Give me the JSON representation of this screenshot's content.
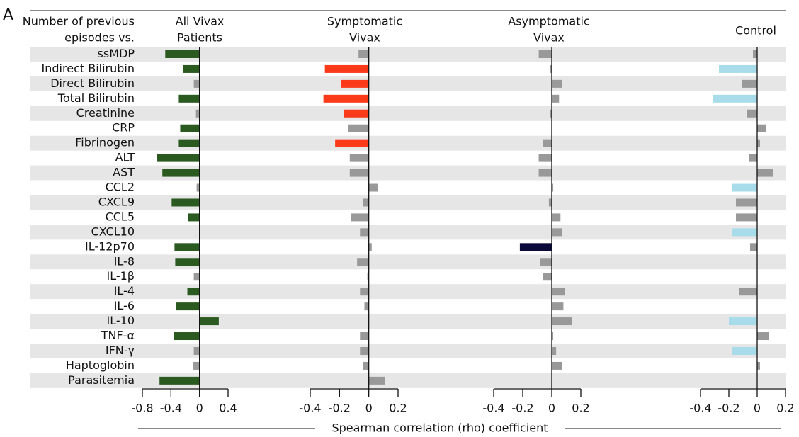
{
  "chart_data": {
    "type": "bar",
    "panel_label": "A",
    "header": [
      "Number of previous",
      "episodes vs."
    ],
    "xlabel": "Spearman correlation (rho) coefficient",
    "categories": [
      "ssMDP",
      "Indirect Bilirubin",
      "Direct Bilirubin",
      "Total Bilirubin",
      "Creatinine",
      "CRP",
      "Fibrinogen",
      "ALT",
      "AST",
      "CCL2",
      "CXCL9",
      "CCL5",
      "CXCL10",
      "IL-12p70",
      "IL-8",
      "IL-1β",
      "IL-4",
      "IL-6",
      "IL-10",
      "TNF-α",
      "IFN-γ",
      "Haptoglobin",
      "Parasitemia"
    ],
    "panels": [
      {
        "title": [
          "All Vivax",
          "Patients"
        ],
        "xlim": [
          -0.8,
          0.4
        ],
        "xticks": [
          -0.8,
          -0.4,
          0,
          0.4
        ],
        "values": [
          -0.48,
          -0.23,
          -0.08,
          -0.29,
          -0.05,
          -0.27,
          -0.29,
          -0.6,
          -0.52,
          -0.04,
          -0.39,
          -0.16,
          0,
          -0.35,
          -0.34,
          -0.08,
          -0.17,
          -0.33,
          0.27,
          -0.36,
          -0.08,
          -0.09,
          -0.56
        ],
        "colors": [
          "#2a5a1f",
          "#2a5a1f",
          "#999999",
          "#2a5a1f",
          "#999999",
          "#2a5a1f",
          "#2a5a1f",
          "#2a5a1f",
          "#2a5a1f",
          "#999999",
          "#2a5a1f",
          "#2a5a1f",
          "#999999",
          "#2a5a1f",
          "#2a5a1f",
          "#999999",
          "#2a5a1f",
          "#2a5a1f",
          "#2a5a1f",
          "#2a5a1f",
          "#999999",
          "#999999",
          "#2a5a1f"
        ]
      },
      {
        "title": [
          "Symptomatic",
          "Vivax"
        ],
        "xlim": [
          -0.4,
          0.2
        ],
        "xticks": [
          -0.4,
          -0.2,
          0,
          0.2
        ],
        "values": [
          -0.07,
          -0.3,
          -0.19,
          -0.31,
          -0.17,
          -0.14,
          -0.23,
          -0.13,
          -0.13,
          0.06,
          -0.04,
          -0.12,
          -0.06,
          0.02,
          -0.08,
          -0.01,
          -0.06,
          -0.03,
          0,
          -0.06,
          -0.06,
          -0.04,
          0.11
        ],
        "colors": [
          "#999999",
          "#fb3a1a",
          "#fb3a1a",
          "#fb3a1a",
          "#fb3a1a",
          "#999999",
          "#fb3a1a",
          "#999999",
          "#999999",
          "#999999",
          "#999999",
          "#999999",
          "#999999",
          "#999999",
          "#999999",
          "#999999",
          "#999999",
          "#999999",
          "#999999",
          "#999999",
          "#999999",
          "#999999",
          "#999999"
        ]
      },
      {
        "title": [
          "Asymptomatic",
          "Vivax"
        ],
        "xlim": [
          -0.4,
          0.2
        ],
        "xticks": [
          -0.4,
          -0.2,
          0,
          0.2
        ],
        "values": [
          -0.09,
          -0.01,
          0.07,
          0.05,
          -0.01,
          0,
          -0.06,
          -0.09,
          -0.09,
          0.01,
          -0.02,
          0.06,
          0.07,
          -0.22,
          -0.08,
          -0.06,
          0.09,
          0.08,
          0.14,
          0.01,
          0.03,
          0.07,
          0
        ],
        "colors": [
          "#999999",
          "#999999",
          "#999999",
          "#999999",
          "#999999",
          "#999999",
          "#999999",
          "#999999",
          "#999999",
          "#999999",
          "#999999",
          "#999999",
          "#999999",
          "#0a0a3a",
          "#999999",
          "#999999",
          "#999999",
          "#999999",
          "#999999",
          "#999999",
          "#999999",
          "#999999",
          "#999999"
        ]
      },
      {
        "title": [
          "Control"
        ],
        "xlim": [
          -0.4,
          0.2
        ],
        "xticks": [
          -0.4,
          -0.2,
          0,
          0.2
        ],
        "values": [
          -0.03,
          -0.27,
          -0.11,
          -0.31,
          -0.07,
          0.06,
          0.02,
          -0.06,
          0.11,
          -0.18,
          -0.15,
          -0.15,
          -0.18,
          -0.05,
          0,
          0,
          -0.13,
          0,
          -0.2,
          0.08,
          -0.18,
          0.02,
          0
        ],
        "colors": [
          "#999999",
          "#a8dcea",
          "#999999",
          "#a8dcea",
          "#999999",
          "#999999",
          "#999999",
          "#999999",
          "#999999",
          "#a8dcea",
          "#999999",
          "#999999",
          "#a8dcea",
          "#999999",
          "#999999",
          "#999999",
          "#999999",
          "#999999",
          "#a8dcea",
          "#999999",
          "#a8dcea",
          "#999999",
          "#999999"
        ]
      }
    ]
  }
}
